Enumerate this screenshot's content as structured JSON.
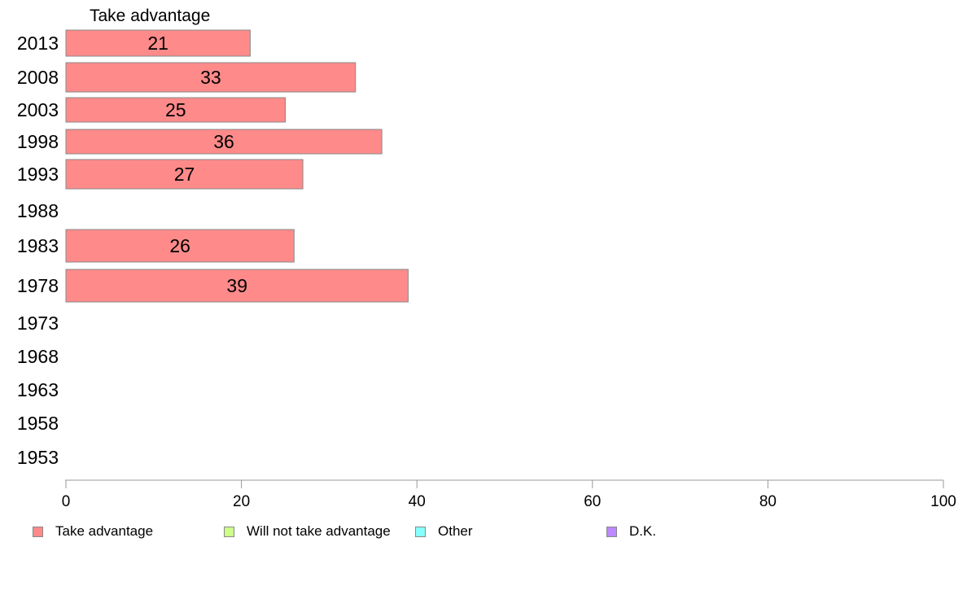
{
  "chart_data": {
    "type": "bar",
    "orientation": "horizontal",
    "title": "Take advantage",
    "categories": [
      "2013",
      "2008",
      "2003",
      "1998",
      "1993",
      "1988",
      "1983",
      "1978",
      "1973",
      "1968",
      "1963",
      "1958",
      "1953"
    ],
    "series": [
      {
        "name": "Take advantage",
        "color": "#ff8a8a",
        "values": [
          21,
          33,
          25,
          36,
          27,
          null,
          26,
          39,
          null,
          null,
          null,
          null,
          null
        ]
      }
    ],
    "xlim": [
      0,
      100
    ],
    "xticks": [
      0,
      20,
      40,
      60,
      80,
      100
    ],
    "grid": false,
    "legend_position": "bottom"
  },
  "legend": {
    "items": [
      {
        "label": "Take advantage",
        "color": "#ff8a8a"
      },
      {
        "label": "Will not take advantage",
        "color": "#ccff88"
      },
      {
        "label": "Other",
        "color": "#88ffff"
      },
      {
        "label": "D.K.",
        "color": "#bb88ff"
      }
    ]
  }
}
